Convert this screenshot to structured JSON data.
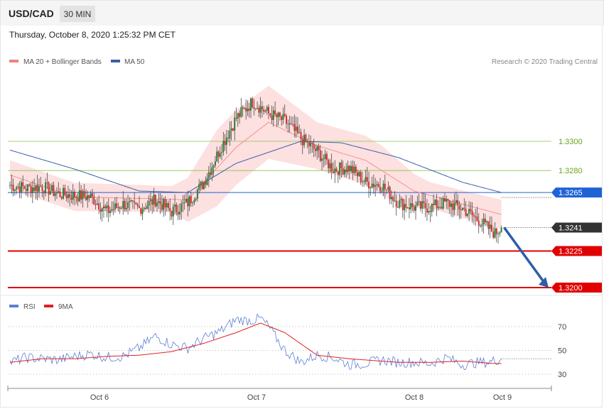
{
  "header": {
    "symbol": "USD/CAD",
    "timeframe": "30 MIN",
    "datetime": "Thursday, October 8, 2020 1:25:32 PM CET"
  },
  "legend": {
    "ma20_label": "MA 20 + Bollinger Bands",
    "ma50_label": "MA 50",
    "ma20_color": "#f08080",
    "ma50_color": "#3a5fa8",
    "copyright": "Research © 2020 Trading Central"
  },
  "rsi_legend": {
    "rsi_label": "RSI",
    "ma_label": "9MA",
    "rsi_color": "#5b7fd6",
    "ma_color": "#e02020"
  },
  "colors": {
    "up": "#2e7d32",
    "down": "#d32f2f",
    "band_fill": "#fde0e0",
    "green_level": "#8bc34a",
    "blue_level": "#1e63d6",
    "red_level": "#e00000",
    "current_price_bg": "#333333",
    "arrow": "#2f5ea8"
  },
  "chart_data": [
    {
      "type": "candlestick",
      "title": "USD/CAD 30 MIN",
      "x_ticks": [
        "Oct 6",
        "Oct 7",
        "Oct 8",
        "Oct 9"
      ],
      "ylim": [
        1.3193,
        1.3344
      ],
      "levels": [
        {
          "value": 1.33,
          "label": "1.3300",
          "style": "green-thin"
        },
        {
          "value": 1.328,
          "label": "1.3280",
          "style": "green-thin"
        },
        {
          "value": 1.3265,
          "label": "1.3265",
          "style": "blue-tag"
        },
        {
          "value": 1.3241,
          "label": "1.3241",
          "style": "current-price"
        },
        {
          "value": 1.3225,
          "label": "1.3225",
          "style": "red-tag"
        },
        {
          "value": 1.32,
          "label": "1.3200",
          "style": "red-tag"
        }
      ],
      "forecast_arrow": {
        "from": 1.3241,
        "to": 1.32
      },
      "anchors": [
        [
          0,
          1.327
        ],
        [
          10,
          1.3268
        ],
        [
          20,
          1.3269
        ],
        [
          30,
          1.3264
        ],
        [
          40,
          1.3263
        ],
        [
          50,
          1.3262
        ],
        [
          55,
          1.3257
        ],
        [
          60,
          1.3252
        ],
        [
          70,
          1.3257
        ],
        [
          80,
          1.3254
        ],
        [
          90,
          1.326
        ],
        [
          100,
          1.3252
        ],
        [
          110,
          1.3258
        ],
        [
          120,
          1.3272
        ],
        [
          130,
          1.3295
        ],
        [
          140,
          1.3316
        ],
        [
          150,
          1.3327
        ],
        [
          160,
          1.3319
        ],
        [
          170,
          1.3314
        ],
        [
          180,
          1.3302
        ],
        [
          190,
          1.3293
        ],
        [
          200,
          1.3281
        ],
        [
          210,
          1.3282
        ],
        [
          220,
          1.3272
        ],
        [
          230,
          1.327
        ],
        [
          240,
          1.3258
        ],
        [
          250,
          1.3255
        ],
        [
          260,
          1.3255
        ],
        [
          270,
          1.3258
        ],
        [
          280,
          1.3254
        ],
        [
          290,
          1.3246
        ],
        [
          300,
          1.3237
        ],
        [
          304,
          1.3241
        ]
      ],
      "ma20_anchors": [
        [
          0,
          1.3277
        ],
        [
          40,
          1.3262
        ],
        [
          80,
          1.3261
        ],
        [
          110,
          1.326
        ],
        [
          140,
          1.3296
        ],
        [
          160,
          1.3313
        ],
        [
          190,
          1.3297
        ],
        [
          220,
          1.3287
        ],
        [
          250,
          1.3266
        ],
        [
          280,
          1.3257
        ],
        [
          304,
          1.325
        ]
      ],
      "bollinger_width_anchors": [
        [
          0,
          1.0
        ],
        [
          100,
          0.9
        ],
        [
          128,
          2.6
        ],
        [
          160,
          2.5
        ],
        [
          190,
          1.6
        ],
        [
          230,
          1.7
        ],
        [
          260,
          0.9
        ],
        [
          304,
          1.0
        ]
      ],
      "ma50_anchors": [
        [
          0,
          1.3294
        ],
        [
          40,
          1.3281
        ],
        [
          80,
          1.3266
        ],
        [
          110,
          1.3265
        ],
        [
          140,
          1.3285
        ],
        [
          180,
          1.33
        ],
        [
          205,
          1.3299
        ],
        [
          240,
          1.3289
        ],
        [
          280,
          1.3272
        ],
        [
          304,
          1.3265
        ]
      ]
    },
    {
      "type": "line",
      "title": "RSI",
      "ylim": [
        20,
        84
      ],
      "y_ticks": [
        30,
        50,
        70
      ],
      "series": [
        {
          "name": "RSI",
          "anchors": [
            [
              0,
              40
            ],
            [
              10,
              44
            ],
            [
              30,
              42
            ],
            [
              40,
              45
            ],
            [
              50,
              47
            ],
            [
              60,
              44
            ],
            [
              70,
              45
            ],
            [
              80,
              52
            ],
            [
              90,
              62
            ],
            [
              100,
              55
            ],
            [
              110,
              52
            ],
            [
              120,
              60
            ],
            [
              130,
              66
            ],
            [
              140,
              76
            ],
            [
              150,
              75
            ],
            [
              155,
              77
            ],
            [
              160,
              70
            ],
            [
              170,
              50
            ],
            [
              180,
              40
            ],
            [
              190,
              46
            ],
            [
              200,
              44
            ],
            [
              210,
              38
            ],
            [
              220,
              39
            ],
            [
              230,
              42
            ],
            [
              240,
              40
            ],
            [
              250,
              40
            ],
            [
              260,
              39
            ],
            [
              270,
              44
            ],
            [
              280,
              38
            ],
            [
              290,
              40
            ],
            [
              296,
              40
            ],
            [
              304,
              43
            ]
          ]
        },
        {
          "name": "9MA",
          "anchors": [
            [
              0,
              40
            ],
            [
              20,
              43
            ],
            [
              40,
              43
            ],
            [
              60,
              45
            ],
            [
              80,
              46
            ],
            [
              100,
              49
            ],
            [
              120,
              56
            ],
            [
              140,
              65
            ],
            [
              155,
              73
            ],
            [
              170,
              65
            ],
            [
              190,
              46
            ],
            [
              210,
              43
            ],
            [
              240,
              40
            ],
            [
              260,
              40
            ],
            [
              280,
              41
            ],
            [
              300,
              39
            ],
            [
              304,
              39
            ]
          ]
        }
      ]
    }
  ]
}
